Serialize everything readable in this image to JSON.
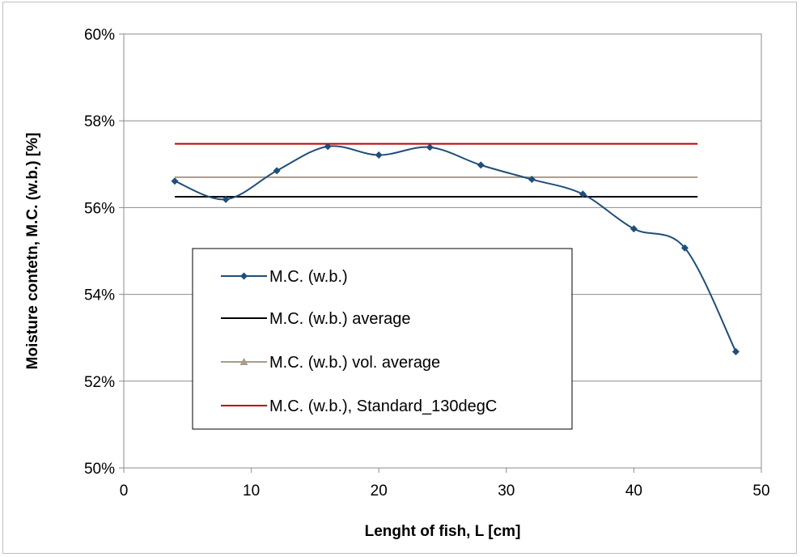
{
  "chart_data": {
    "type": "line",
    "title": "",
    "xlabel": "Lenght of fish, L [cm]",
    "ylabel": "Moisture contetn, M.C. (w.b.) [%]",
    "xlim": [
      0,
      50
    ],
    "ylim": [
      0.5,
      0.6
    ],
    "x_ticks": [
      0,
      10,
      20,
      30,
      40,
      50
    ],
    "x_tick_labels": [
      "0",
      "10",
      "20",
      "30",
      "40",
      "50"
    ],
    "y_ticks": [
      0.5,
      0.52,
      0.54,
      0.56,
      0.58,
      0.6
    ],
    "y_tick_labels": [
      "50%",
      "52%",
      "54%",
      "56%",
      "58%",
      "60%"
    ],
    "grid": "horizontal",
    "legend_position": "center-left",
    "series": [
      {
        "name": "M.C. (w.b.)",
        "style": "smooth-line-diamond",
        "color": "#1f4e79",
        "x": [
          4,
          8,
          12,
          16,
          20,
          24,
          28,
          32,
          36,
          40,
          44,
          48
        ],
        "y": [
          0.5661,
          0.5619,
          0.5685,
          0.5741,
          0.5721,
          0.5739,
          0.5698,
          0.5665,
          0.5631,
          0.5551,
          0.5507,
          0.5268
        ]
      },
      {
        "name": "M.C. (w.b.) average",
        "style": "line",
        "color": "#000000",
        "x": [
          4,
          45
        ],
        "y": [
          0.5625,
          0.5625
        ]
      },
      {
        "name": "M.C. (w.b.) vol. average",
        "style": "line-triangle",
        "color": "#a89c8c",
        "x": [
          4,
          45
        ],
        "y": [
          0.567,
          0.567
        ]
      },
      {
        "name": "M.C. (w.b.), Standard_130degC",
        "style": "line",
        "color": "#c00000",
        "x": [
          4,
          45
        ],
        "y": [
          0.5747,
          0.5747
        ]
      }
    ]
  }
}
